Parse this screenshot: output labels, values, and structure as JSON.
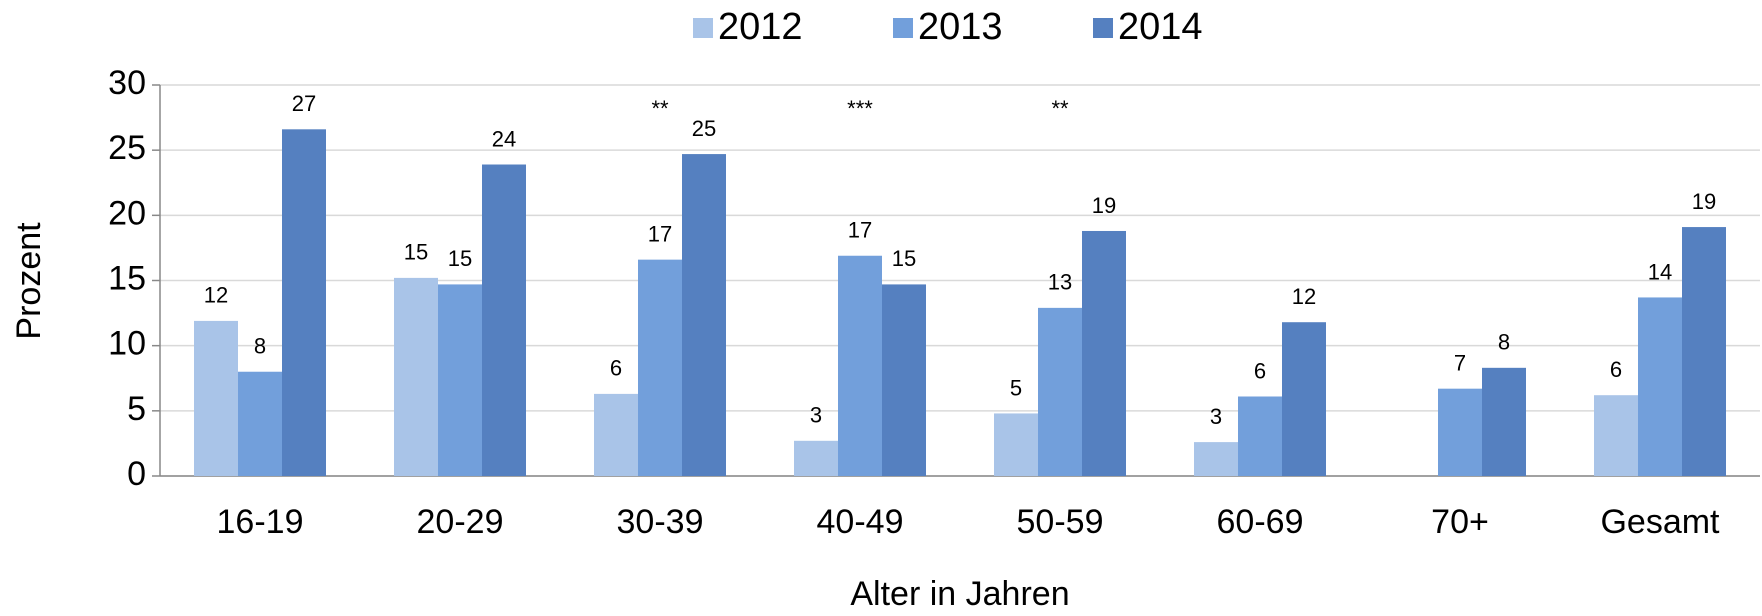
{
  "chart_data": {
    "type": "bar",
    "categories": [
      "16-19",
      "20-29",
      "30-39",
      "40-49",
      "50-59",
      "60-69",
      "70+",
      "Gesamt"
    ],
    "series": [
      {
        "name": "2012",
        "color": "#a9c4e8",
        "values": [
          11.9,
          15.2,
          6.3,
          2.7,
          4.8,
          2.6,
          null,
          6.2
        ],
        "value_labels": [
          "12",
          "15",
          "6",
          "3",
          "5",
          "3",
          null,
          "6"
        ]
      },
      {
        "name": "2013",
        "color": "#729fdb",
        "values": [
          8.0,
          14.7,
          16.6,
          16.9,
          12.9,
          6.1,
          6.7,
          13.7
        ],
        "value_labels": [
          "8",
          "15",
          "17",
          "17",
          "13",
          "6",
          "7",
          "14"
        ]
      },
      {
        "name": "2014",
        "color": "#5580c0",
        "values": [
          26.6,
          23.9,
          24.7,
          14.7,
          18.8,
          11.8,
          8.3,
          19.1
        ],
        "value_labels": [
          "27",
          "24",
          "25",
          "15",
          "19",
          "12",
          "8",
          "19"
        ]
      }
    ],
    "annotations": [
      null,
      null,
      "**",
      "***",
      "**",
      null,
      null,
      null
    ],
    "y_label": "Prozent",
    "x_label": "Alter in Jahren",
    "ylim": [
      0,
      30
    ],
    "yticks": [
      0,
      5,
      10,
      15,
      20,
      25,
      30
    ],
    "grid": true,
    "legend": "top"
  }
}
